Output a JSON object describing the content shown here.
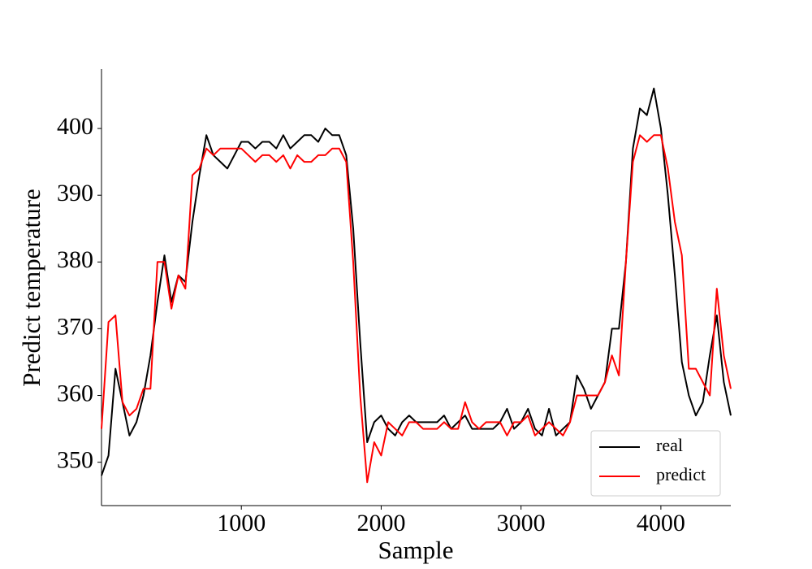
{
  "chart_data": {
    "type": "line",
    "xlabel": "Sample",
    "ylabel": "Predict temperature",
    "x": [
      0,
      50,
      100,
      150,
      200,
      250,
      300,
      350,
      400,
      450,
      500,
      550,
      600,
      650,
      700,
      750,
      800,
      850,
      900,
      950,
      1000,
      1050,
      1100,
      1150,
      1200,
      1250,
      1300,
      1350,
      1400,
      1450,
      1500,
      1550,
      1600,
      1650,
      1700,
      1750,
      1800,
      1850,
      1900,
      1950,
      2000,
      2050,
      2100,
      2150,
      2200,
      2250,
      2300,
      2350,
      2400,
      2450,
      2500,
      2550,
      2600,
      2650,
      2700,
      2750,
      2800,
      2850,
      2900,
      2950,
      3000,
      3050,
      3100,
      3150,
      3200,
      3250,
      3300,
      3350,
      3400,
      3450,
      3500,
      3550,
      3600,
      3650,
      3700,
      3750,
      3800,
      3850,
      3900,
      3950,
      4000,
      4050,
      4100,
      4150,
      4200,
      4250,
      4300,
      4350,
      4400,
      4450,
      4500
    ],
    "series": [
      {
        "name": "real",
        "color": "#000000",
        "values": [
          348,
          351,
          364,
          359,
          354,
          356,
          360,
          366,
          374,
          381,
          374,
          378,
          377,
          386,
          393,
          399,
          396,
          395,
          394,
          396,
          398,
          398,
          397,
          398,
          398,
          397,
          399,
          397,
          398,
          399,
          399,
          398,
          400,
          399,
          399,
          396,
          385,
          368,
          353,
          356,
          357,
          355,
          354,
          356,
          357,
          356,
          356,
          356,
          356,
          357,
          355,
          356,
          357,
          355,
          355,
          355,
          355,
          356,
          358,
          355,
          356,
          358,
          355,
          354,
          358,
          354,
          355,
          356,
          363,
          361,
          358,
          360,
          362,
          370,
          370,
          380,
          397,
          403,
          402,
          406,
          400,
          390,
          378,
          365,
          360,
          357,
          359,
          366,
          372,
          362,
          357
        ]
      },
      {
        "name": "predict",
        "color": "#ff0000",
        "values": [
          355,
          371,
          372,
          359,
          357,
          358,
          361,
          361,
          380,
          380,
          373,
          378,
          376,
          393,
          394,
          397,
          396,
          397,
          397,
          397,
          397,
          396,
          395,
          396,
          396,
          395,
          396,
          394,
          396,
          395,
          395,
          396,
          396,
          397,
          397,
          395,
          380,
          360,
          347,
          353,
          351,
          356,
          355,
          354,
          356,
          356,
          355,
          355,
          355,
          356,
          355,
          355,
          359,
          356,
          355,
          356,
          356,
          356,
          354,
          356,
          356,
          357,
          354,
          355,
          356,
          355,
          354,
          356,
          360,
          360,
          360,
          360,
          362,
          366,
          363,
          380,
          395,
          399,
          398,
          399,
          399,
          394,
          386,
          381,
          364,
          364,
          362,
          360,
          376,
          366,
          361
        ]
      }
    ],
    "xlim": [
      0,
      4500
    ],
    "xticks": [
      1000,
      2000,
      3000,
      4000
    ],
    "ylim": [
      343.5,
      408.9
    ],
    "yticks": [
      350,
      360,
      370,
      380,
      390,
      400
    ],
    "legend": "lower right"
  }
}
